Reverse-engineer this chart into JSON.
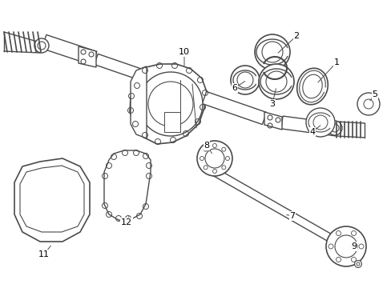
{
  "background_color": "#ffffff",
  "line_color": "#4a4a4a",
  "label_color": "#000000",
  "figsize": [
    4.89,
    3.6
  ],
  "dpi": 100
}
